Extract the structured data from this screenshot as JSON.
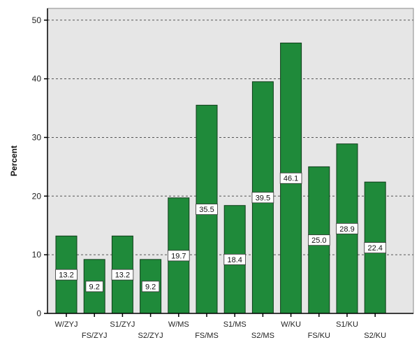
{
  "chart_data": {
    "type": "bar",
    "title": "",
    "xlabel": "",
    "ylabel": "Percent",
    "ylim": [
      0,
      52
    ],
    "yticks": [
      0,
      10,
      20,
      30,
      40,
      50
    ],
    "grid": true,
    "categories": [
      "W/ZYJ",
      "FS/ZYJ",
      "S1/ZYJ",
      "S2/ZYJ",
      "W/MS",
      "FS/MS",
      "S1/MS",
      "S2/MS",
      "W/KU",
      "FS/KU",
      "S1/KU",
      "S2/KU"
    ],
    "values": [
      13.2,
      9.2,
      13.2,
      9.2,
      19.7,
      35.5,
      18.4,
      39.5,
      46.1,
      25.0,
      28.9,
      22.4
    ],
    "data_labels": [
      "13.2",
      "9.2",
      "13.2",
      "9.2",
      "19.7",
      "35.5",
      "18.4",
      "39.5",
      "46.1",
      "25.0",
      "28.9",
      "22.4"
    ],
    "colors": {
      "bar": "#1f8a3a",
      "bar_edge": "#0f3d1a",
      "plot_bg": "#e6e6e6",
      "grid": "#555555"
    }
  }
}
